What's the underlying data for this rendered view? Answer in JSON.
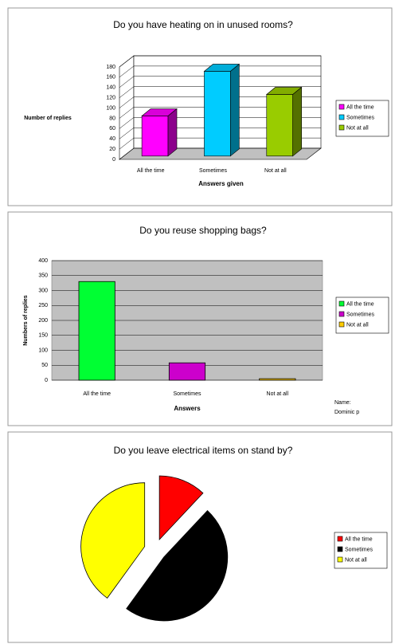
{
  "chart_data": [
    {
      "type": "bar3d",
      "title": "Do you have heating on in unused rooms?",
      "y_label": "Number of replies",
      "x_label": "Answers given",
      "categories": [
        "All the time",
        "Sometimes",
        "Not at all"
      ],
      "values": [
        78,
        165,
        120
      ],
      "colors": [
        "#ff00ff",
        "#00ccff",
        "#99cc00"
      ],
      "ylim": [
        0,
        180
      ],
      "yticks": [
        0,
        20,
        40,
        60,
        80,
        100,
        120,
        140,
        160,
        180
      ],
      "grid": true,
      "legend": "right"
    },
    {
      "type": "bar",
      "title": "Do you reuse shopping bags?",
      "y_label": "Numbers of replies",
      "x_label": "Answers",
      "categories": [
        "All the time",
        "Sometimes",
        "Not at all"
      ],
      "values": [
        330,
        58,
        5
      ],
      "colors": [
        "#00ff33",
        "#cc00cc",
        "#ffcc00"
      ],
      "ylim": [
        0,
        400
      ],
      "yticks": [
        0,
        50,
        100,
        150,
        200,
        250,
        300,
        350,
        400
      ],
      "grid": true,
      "legend": "right",
      "annotations": [
        "Name:",
        "Dominic p"
      ]
    },
    {
      "type": "pie",
      "title": "Do you leave electrical items on stand by?",
      "categories": [
        "All the time",
        "Sometimes",
        "Not at all"
      ],
      "values": [
        12,
        48,
        40
      ],
      "colors": [
        "#ff0000",
        "#000000",
        "#ffff00"
      ],
      "legend": "right"
    }
  ]
}
